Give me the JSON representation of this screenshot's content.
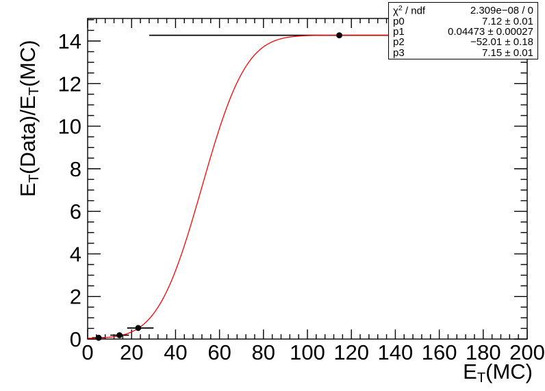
{
  "window": {
    "background": "#ffffff"
  },
  "stats": {
    "rows": [
      {
        "label": "χ2 / ndf",
        "label_rich": [
          {
            "t": "χ"
          },
          {
            "t": "2",
            "sup": true
          },
          {
            "t": " / ndf"
          }
        ],
        "value": "2.309e−08 / 0"
      },
      {
        "label": "p0",
        "value": "7.12 ± 0.01"
      },
      {
        "label": "p1",
        "value": "0.04473 ± 0.00027"
      },
      {
        "label": "p2",
        "value": "−52.01 ± 0.18"
      },
      {
        "label": "p3",
        "value": "7.15 ± 0.01"
      }
    ]
  },
  "axes": {
    "x": {
      "label": "E_T(MC)",
      "title_rich": [
        {
          "t": "E"
        },
        {
          "t": "T",
          "sub": true
        },
        {
          "t": "(MC)"
        }
      ]
    },
    "y": {
      "label": "E_T(Data)/E_T(MC)",
      "title_rich": [
        {
          "t": "E"
        },
        {
          "t": "T",
          "sub": true
        },
        {
          "t": "(Data)/E"
        },
        {
          "t": "T",
          "sub": true
        },
        {
          "t": "(MC)"
        }
      ]
    }
  },
  "chart_data": {
    "type": "scatter",
    "title": "",
    "xlabel": "E_T(MC)",
    "ylabel": "E_T(Data)/E_T(MC)",
    "xlim": [
      0,
      200
    ],
    "ylim": [
      0,
      15.06
    ],
    "x_major_ticks": [
      0,
      20,
      40,
      60,
      80,
      100,
      120,
      140,
      160,
      180,
      200
    ],
    "x_minor_step": 4,
    "y_major_ticks": [
      0,
      2,
      4,
      6,
      8,
      10,
      12,
      14
    ],
    "y_minor_step": 0.5,
    "grid": false,
    "legend": false,
    "points": [
      {
        "x": 5,
        "y": 0.06,
        "xlo": 2,
        "xhi": 8
      },
      {
        "x": 14.5,
        "y": 0.18,
        "xlo": 10.3,
        "xhi": 18.8
      },
      {
        "x": 23,
        "y": 0.52,
        "xlo": 18,
        "xhi": 30
      },
      {
        "x": 114.5,
        "y": 14.27,
        "xlo": 28,
        "xhi": 200
      }
    ],
    "fit": {
      "model": "y = p3 + p0*erf(p1*(x + p2))",
      "p0": 7.12,
      "p1": 0.04473,
      "p2": -52.01,
      "p3": 7.15,
      "x_range": [
        0,
        200
      ]
    },
    "colors": {
      "curve": "#ff0000",
      "marker": "#000000",
      "axis": "#000000",
      "background": "#ffffff"
    },
    "marker": {
      "shape": "circle",
      "radius_px": 4.4
    }
  }
}
